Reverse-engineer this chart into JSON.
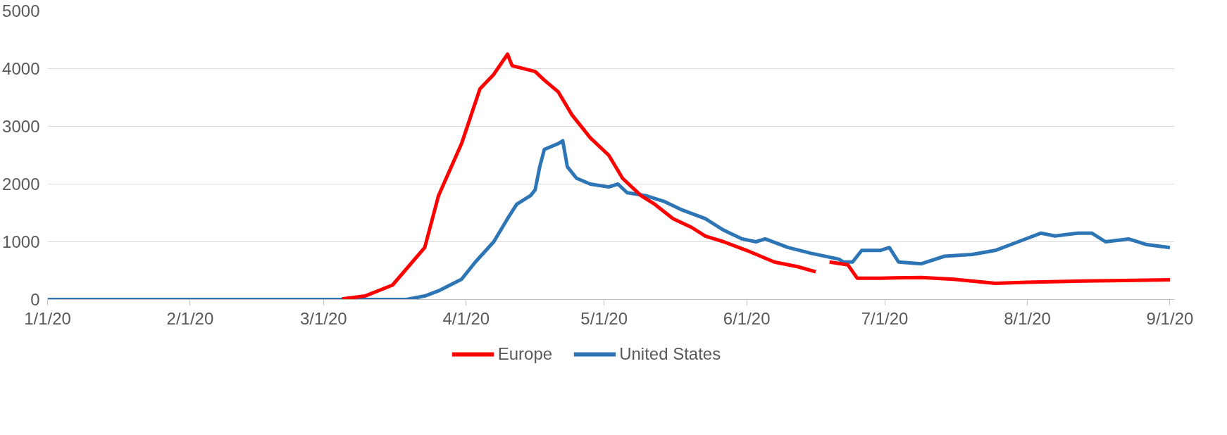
{
  "chart_data": {
    "type": "line",
    "xlim": [
      "2020-01-01",
      "2020-09-02"
    ],
    "xticks": [
      {
        "value": "2020-01-01",
        "label": "1/1/20"
      },
      {
        "value": "2020-02-01",
        "label": "2/1/20"
      },
      {
        "value": "2020-03-01",
        "label": "3/1/20"
      },
      {
        "value": "2020-04-01",
        "label": "4/1/20"
      },
      {
        "value": "2020-05-01",
        "label": "5/1/20"
      },
      {
        "value": "2020-06-01",
        "label": "6/1/20"
      },
      {
        "value": "2020-07-01",
        "label": "7/1/20"
      },
      {
        "value": "2020-08-01",
        "label": "8/1/20"
      },
      {
        "value": "2020-09-01",
        "label": "9/1/20"
      }
    ],
    "ylim": [
      0,
      5000
    ],
    "yticks": [
      0,
      1000,
      2000,
      3000,
      4000,
      5000
    ],
    "grid": "y",
    "legend": "bottom",
    "marker": "none",
    "line_style": "solid",
    "series": [
      {
        "name": "Europe",
        "color": "#ff0000",
        "x": [
          "2020-03-05",
          "2020-03-10",
          "2020-03-16",
          "2020-03-23",
          "2020-03-26",
          "2020-03-31",
          "2020-04-04",
          "2020-04-07",
          "2020-04-10",
          "2020-04-11",
          "2020-04-16",
          "2020-04-18",
          "2020-04-21",
          "2020-04-24",
          "2020-04-28",
          "2020-05-02",
          "2020-05-05",
          "2020-05-09",
          "2020-05-12",
          "2020-05-16",
          "2020-05-20",
          "2020-05-23",
          "2020-05-27",
          "2020-06-01",
          "2020-06-07",
          "2020-06-12",
          "2020-06-16",
          "2020-06-17",
          "2020-06-19",
          "2020-06-23",
          "2020-06-25",
          "2020-06-30",
          "2020-07-09",
          "2020-07-16",
          "2020-07-25",
          "2020-08-01",
          "2020-08-13",
          "2020-08-22",
          "2020-09-01"
        ],
        "values": [
          10,
          60,
          250,
          900,
          1800,
          2700,
          3650,
          3900,
          4250,
          4050,
          3950,
          3800,
          3600,
          3200,
          2800,
          2500,
          2100,
          1800,
          1650,
          1400,
          1250,
          1100,
          1000,
          850,
          650,
          570,
          480,
          null,
          650,
          600,
          370,
          370,
          380,
          350,
          280,
          300,
          320,
          330,
          340
        ]
      },
      {
        "name": "United States",
        "color": "#2e75b6",
        "x": [
          "2020-01-01",
          "2020-02-01",
          "2020-03-01",
          "2020-03-19",
          "2020-03-23",
          "2020-03-26",
          "2020-03-31",
          "2020-04-03",
          "2020-04-07",
          "2020-04-10",
          "2020-04-12",
          "2020-04-15",
          "2020-04-16",
          "2020-04-17",
          "2020-04-18",
          "2020-04-21",
          "2020-04-22",
          "2020-04-23",
          "2020-04-25",
          "2020-04-28",
          "2020-05-02",
          "2020-05-04",
          "2020-05-06",
          "2020-05-10",
          "2020-05-14",
          "2020-05-18",
          "2020-05-23",
          "2020-05-27",
          "2020-05-31",
          "2020-06-03",
          "2020-06-05",
          "2020-06-10",
          "2020-06-15",
          "2020-06-21",
          "2020-06-22",
          "2020-06-24",
          "2020-06-26",
          "2020-06-30",
          "2020-07-02",
          "2020-07-04",
          "2020-07-09",
          "2020-07-14",
          "2020-07-20",
          "2020-07-25",
          "2020-07-30",
          "2020-08-04",
          "2020-08-07",
          "2020-08-12",
          "2020-08-15",
          "2020-08-18",
          "2020-08-23",
          "2020-08-27",
          "2020-09-01"
        ],
        "values": [
          0,
          0,
          0,
          0,
          60,
          150,
          350,
          650,
          1000,
          1400,
          1650,
          1800,
          1900,
          2300,
          2600,
          2700,
          2750,
          2300,
          2100,
          2000,
          1950,
          2000,
          1850,
          1800,
          1700,
          1550,
          1400,
          1200,
          1050,
          1000,
          1050,
          900,
          800,
          700,
          650,
          650,
          850,
          850,
          900,
          650,
          620,
          750,
          780,
          850,
          1000,
          1150,
          1100,
          1150,
          1150,
          1000,
          1050,
          950,
          900
        ]
      }
    ]
  }
}
